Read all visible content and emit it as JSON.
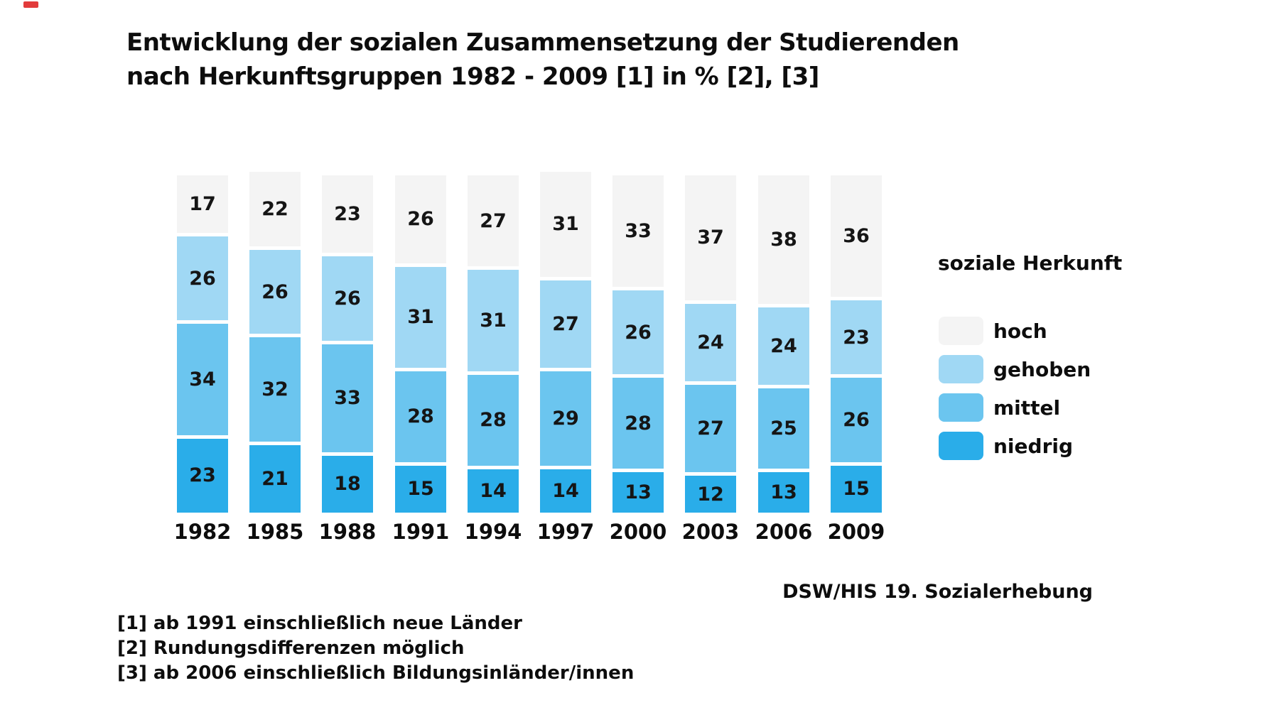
{
  "title": {
    "line1": "Entwicklung der sozialen Zusammensetzung der Studierenden",
    "line2": "nach Herkunftsgruppen 1982 - 2009 [1] in % [2], [3]"
  },
  "legend": {
    "title": "soziale Herkunft",
    "items": [
      {
        "label": "hoch",
        "color": "#f4f4f4"
      },
      {
        "label": "gehoben",
        "color": "#a0d8f4"
      },
      {
        "label": "mittel",
        "color": "#6bc5ef"
      },
      {
        "label": "niedrig",
        "color": "#2aade9"
      }
    ]
  },
  "source": "DSW/HIS 19. Sozialerhebung",
  "footnotes": [
    "[1] ab 1991 einschließlich neue Länder",
    "[2] Rundungsdifferenzen möglich",
    "[3] ab 2006 einschließlich Bildungsinländer/innen"
  ],
  "chart_data": {
    "type": "bar",
    "stacked": true,
    "title": "Entwicklung der sozialen Zusammensetzung der Studierenden nach Herkunftsgruppen 1982 - 2009 [1] in % [2], [3]",
    "unit": "%",
    "xlabel": "",
    "ylabel": "",
    "grid": false,
    "legend_position": "right",
    "value_labels": true,
    "categories": [
      "1982",
      "1985",
      "1988",
      "1991",
      "1994",
      "1997",
      "2000",
      "2003",
      "2006",
      "2009"
    ],
    "series": [
      {
        "name": "hoch",
        "color": "#f4f4f4",
        "values": [
          17,
          22,
          23,
          26,
          27,
          31,
          33,
          37,
          38,
          36
        ]
      },
      {
        "name": "gehoben",
        "color": "#a0d8f4",
        "values": [
          26,
          26,
          26,
          31,
          31,
          27,
          26,
          24,
          24,
          23
        ]
      },
      {
        "name": "mittel",
        "color": "#6bc5ef",
        "values": [
          34,
          32,
          33,
          28,
          28,
          29,
          28,
          27,
          25,
          26
        ]
      },
      {
        "name": "niedrig",
        "color": "#2aade9",
        "values": [
          23,
          21,
          18,
          15,
          14,
          14,
          13,
          12,
          13,
          15
        ]
      }
    ]
  }
}
